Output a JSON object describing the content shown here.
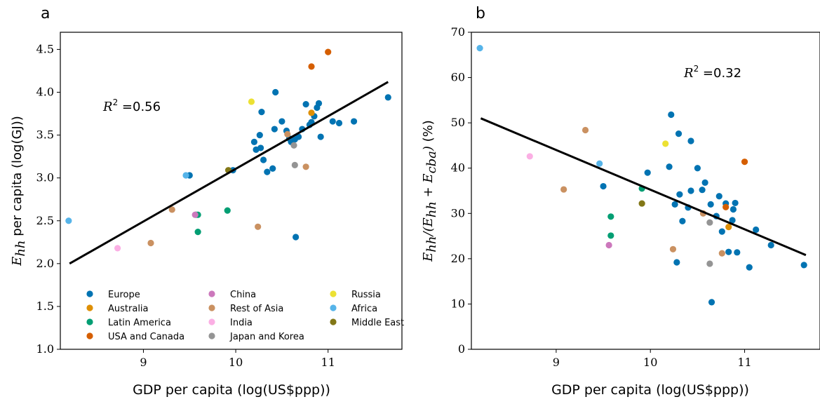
{
  "chart_data": [
    {
      "type": "scatter",
      "panel_label": "a",
      "xlabel": "GDP per capita (log(US$ppp))",
      "ylabel_var": "E",
      "ylabel_sub": "hh",
      "ylabel_rest": " per capita (log(GJ))",
      "annotation_r2_label": "R",
      "annotation_r2_exp": "2",
      "annotation_r2_value": " =0.56",
      "xlim": [
        8.1,
        11.8
      ],
      "ylim": [
        1.0,
        4.7
      ],
      "xticks": [
        9,
        10,
        11
      ],
      "yticks": [
        1.0,
        1.5,
        2.0,
        2.5,
        3.0,
        3.5,
        4.0,
        4.5
      ],
      "ytick_labels": [
        "1.0",
        "1.5",
        "2.0",
        "2.5",
        "3.0",
        "3.5",
        "4.0",
        "4.5"
      ],
      "fit_line": {
        "x": [
          8.2,
          11.65
        ],
        "y": [
          2.0,
          4.12
        ]
      },
      "legend_placement": "lower-left",
      "series": [
        {
          "name": "Europe",
          "color": "#0173b2",
          "points": [
            [
              9.5,
              3.03
            ],
            [
              9.97,
              3.09
            ],
            [
              10.2,
              3.42
            ],
            [
              10.22,
              3.33
            ],
            [
              10.26,
              3.5
            ],
            [
              10.28,
              3.77
            ],
            [
              10.27,
              3.35
            ],
            [
              10.3,
              3.21
            ],
            [
              10.34,
              3.07
            ],
            [
              10.4,
              3.11
            ],
            [
              10.42,
              3.57
            ],
            [
              10.43,
              4.0
            ],
            [
              10.5,
              3.66
            ],
            [
              10.55,
              3.55
            ],
            [
              10.58,
              3.46
            ],
            [
              10.6,
              3.42
            ],
            [
              10.64,
              3.45
            ],
            [
              10.68,
              3.48
            ],
            [
              10.72,
              3.57
            ],
            [
              10.76,
              3.86
            ],
            [
              10.8,
              3.62
            ],
            [
              10.82,
              3.65
            ],
            [
              10.85,
              3.72
            ],
            [
              10.88,
              3.82
            ],
            [
              10.9,
              3.87
            ],
            [
              10.92,
              3.48
            ],
            [
              11.05,
              3.66
            ],
            [
              11.12,
              3.64
            ],
            [
              11.28,
              3.66
            ],
            [
              11.65,
              3.94
            ],
            [
              10.65,
              2.31
            ]
          ]
        },
        {
          "name": "Australia",
          "color": "#de8f05",
          "points": [
            [
              10.82,
              3.76
            ]
          ]
        },
        {
          "name": "Latin America",
          "color": "#029e73",
          "points": [
            [
              9.57,
              2.57
            ],
            [
              9.59,
              2.57
            ],
            [
              9.59,
              2.37
            ],
            [
              9.91,
              2.62
            ]
          ]
        },
        {
          "name": "USA and Canada",
          "color": "#d55e00",
          "points": [
            [
              10.82,
              4.3
            ],
            [
              11.0,
              4.47
            ]
          ]
        },
        {
          "name": "China",
          "color": "#cc78bc",
          "points": [
            [
              9.56,
              2.57
            ]
          ]
        },
        {
          "name": "Rest of Asia",
          "color": "#ca9161",
          "points": [
            [
              9.08,
              2.24
            ],
            [
              9.31,
              2.63
            ],
            [
              10.24,
              2.43
            ],
            [
              10.56,
              3.51
            ],
            [
              10.76,
              3.13
            ]
          ]
        },
        {
          "name": "India",
          "color": "#fbafe4",
          "points": [
            [
              8.72,
              2.18
            ]
          ]
        },
        {
          "name": "Japan and Korea",
          "color": "#949494",
          "points": [
            [
              10.63,
              3.38
            ],
            [
              10.64,
              3.15
            ]
          ]
        },
        {
          "name": "Russia",
          "color": "#ece133",
          "points": [
            [
              10.17,
              3.89
            ]
          ]
        },
        {
          "name": "Africa",
          "color": "#56b4e9",
          "points": [
            [
              8.19,
              2.5
            ],
            [
              9.46,
              3.03
            ]
          ]
        },
        {
          "name": "Middle East",
          "color": "#827717",
          "points": [
            [
              9.92,
              3.09
            ]
          ]
        }
      ]
    },
    {
      "type": "scatter",
      "panel_label": "b",
      "xlabel": "GDP per capita (log(US$ppp))",
      "ylabel_parts": {
        "e": "E",
        "hh": "hh",
        "slash": "/(",
        "e2": "E",
        "hh2": "hh",
        "plus": " + ",
        "e3": "E",
        "cba": "cba",
        "close": ")",
        "unit": " (%)"
      },
      "annotation_r2_label": "R",
      "annotation_r2_exp": "2",
      "annotation_r2_value": " =0.32",
      "xlim": [
        8.1,
        11.8
      ],
      "ylim": [
        0,
        70
      ],
      "xticks": [
        9,
        10,
        11
      ],
      "yticks": [
        0,
        10,
        20,
        30,
        40,
        50,
        60,
        70
      ],
      "ytick_labels": [
        "0",
        "10",
        "20",
        "30",
        "40",
        "50",
        "60",
        "70"
      ],
      "fit_line": {
        "x": [
          8.2,
          11.65
        ],
        "y": [
          51.0,
          20.8
        ]
      },
      "series": [
        {
          "name": "Europe",
          "color": "#0173b2",
          "points": [
            [
              9.5,
              36.0
            ],
            [
              9.97,
              39.0
            ],
            [
              10.2,
              40.3
            ],
            [
              10.22,
              51.8
            ],
            [
              10.26,
              32.0
            ],
            [
              10.28,
              19.2
            ],
            [
              10.3,
              47.6
            ],
            [
              10.31,
              34.2
            ],
            [
              10.34,
              28.3
            ],
            [
              10.4,
              31.3
            ],
            [
              10.43,
              46.0
            ],
            [
              10.43,
              35.0
            ],
            [
              10.5,
              40.0
            ],
            [
              10.55,
              35.2
            ],
            [
              10.58,
              36.8
            ],
            [
              10.64,
              32.0
            ],
            [
              10.65,
              10.4
            ],
            [
              10.7,
              29.4
            ],
            [
              10.73,
              33.8
            ],
            [
              10.76,
              26.0
            ],
            [
              10.8,
              32.2
            ],
            [
              10.83,
              21.5
            ],
            [
              10.87,
              28.5
            ],
            [
              10.88,
              30.9
            ],
            [
              10.9,
              32.3
            ],
            [
              10.92,
              21.4
            ],
            [
              11.05,
              18.1
            ],
            [
              11.12,
              26.4
            ],
            [
              11.28,
              23.0
            ],
            [
              11.63,
              18.6
            ]
          ]
        },
        {
          "name": "Australia",
          "color": "#de8f05",
          "points": [
            [
              10.83,
              27.0
            ]
          ]
        },
        {
          "name": "Latin America",
          "color": "#029e73",
          "points": [
            [
              9.58,
              29.3
            ],
            [
              9.58,
              25.1
            ],
            [
              9.91,
              35.5
            ]
          ]
        },
        {
          "name": "USA and Canada",
          "color": "#d55e00",
          "points": [
            [
              10.8,
              31.4
            ],
            [
              11.0,
              41.4
            ]
          ]
        },
        {
          "name": "China",
          "color": "#cc78bc",
          "points": [
            [
              9.56,
              23.0
            ]
          ]
        },
        {
          "name": "Rest of Asia",
          "color": "#ca9161",
          "points": [
            [
              9.08,
              35.3
            ],
            [
              9.31,
              48.4
            ],
            [
              10.24,
              22.1
            ],
            [
              10.56,
              30.0
            ],
            [
              10.76,
              21.2
            ]
          ]
        },
        {
          "name": "India",
          "color": "#fbafe4",
          "points": [
            [
              8.72,
              42.6
            ]
          ]
        },
        {
          "name": "Japan and Korea",
          "color": "#949494",
          "points": [
            [
              10.63,
              28.0
            ],
            [
              10.63,
              18.9
            ]
          ]
        },
        {
          "name": "Russia",
          "color": "#ece133",
          "points": [
            [
              10.16,
              45.4
            ]
          ]
        },
        {
          "name": "Africa",
          "color": "#56b4e9",
          "points": [
            [
              8.19,
              66.5
            ],
            [
              9.46,
              41.0
            ]
          ]
        },
        {
          "name": "Middle East",
          "color": "#827717",
          "points": [
            [
              9.91,
              32.2
            ]
          ]
        }
      ]
    }
  ]
}
